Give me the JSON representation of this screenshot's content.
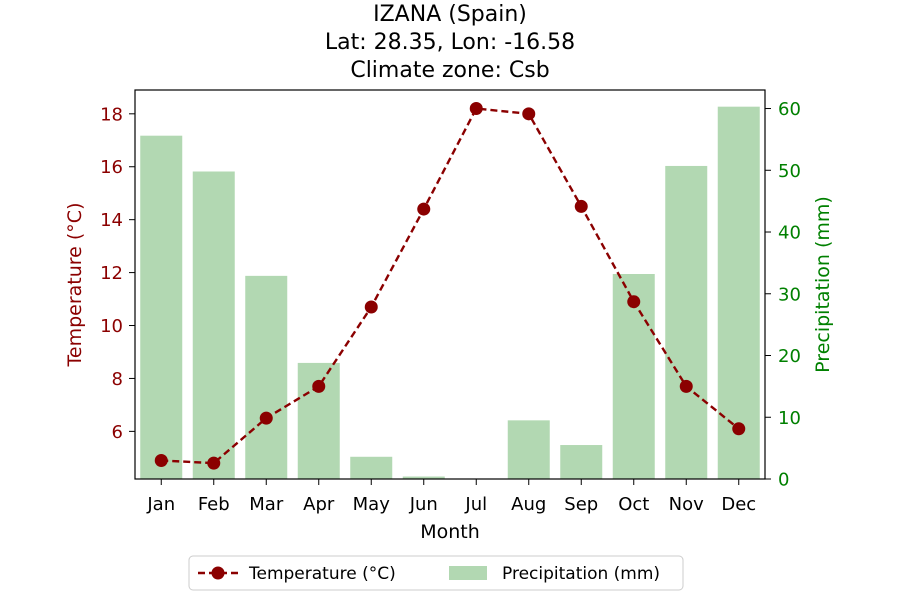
{
  "chart_data": {
    "type": "bar+line",
    "title_lines": [
      "IZANA (Spain)",
      "Lat: 28.35, Lon: -16.58",
      "Climate zone: Csb"
    ],
    "xlabel": "Month",
    "categories": [
      "Jan",
      "Feb",
      "Mar",
      "Apr",
      "May",
      "Jun",
      "Jul",
      "Aug",
      "Sep",
      "Oct",
      "Nov",
      "Dec"
    ],
    "y_left": {
      "label": "Temperature (°C)",
      "color": "#8b0000",
      "lim": [
        4.2,
        18.9
      ],
      "ticks": [
        6,
        8,
        10,
        12,
        14,
        16,
        18
      ]
    },
    "y_right": {
      "label": "Precipitation (mm)",
      "color": "#008000",
      "lim": [
        0,
        63
      ],
      "ticks": [
        0,
        10,
        20,
        30,
        40,
        50,
        60
      ]
    },
    "series": [
      {
        "name": "Temperature (°C)",
        "kind": "line",
        "axis": "left",
        "color": "#8b0000",
        "line_style": "dashed",
        "marker": "circle",
        "values": [
          4.9,
          4.8,
          6.5,
          7.7,
          10.7,
          14.4,
          18.2,
          18.0,
          14.5,
          10.9,
          7.7,
          6.1
        ]
      },
      {
        "name": "Precipitation (mm)",
        "kind": "bar",
        "axis": "right",
        "color": "#b2d8b2",
        "values": [
          55.6,
          49.8,
          32.9,
          18.8,
          3.6,
          0.4,
          0.0,
          9.5,
          5.5,
          33.2,
          50.7,
          60.3
        ]
      }
    ],
    "legend": {
      "placement": "bottom-center",
      "entries": [
        "Temperature (°C)",
        "Precipitation (mm)"
      ]
    },
    "grid": false
  }
}
